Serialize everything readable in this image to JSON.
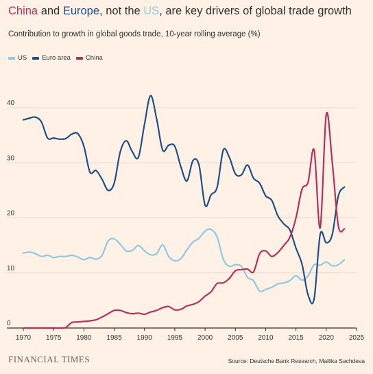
{
  "header": {
    "title_parts": [
      {
        "text": "China",
        "color": "#b5315c"
      },
      {
        "text": " and ",
        "color": "#33302e"
      },
      {
        "text": "Europe",
        "color": "#1f4f8b"
      },
      {
        "text": ", not the ",
        "color": "#33302e"
      },
      {
        "text": "US",
        "color": "#8fc8e0"
      },
      {
        "text": ", are key drivers of global trade growth",
        "color": "#33302e"
      }
    ],
    "subtitle": "Contribution to growth in global goods trade, 10-year rolling average (%)"
  },
  "footer": {
    "brand": "FINANCIAL TIMES",
    "source": "Source: Deutsche Bank Research, Mallika Sachdeva"
  },
  "chart_data": {
    "type": "line",
    "xlim": [
      1970,
      2025
    ],
    "ylim": [
      0,
      40
    ],
    "x_ticks": [
      1970,
      1975,
      1980,
      1985,
      1990,
      1995,
      2000,
      2005,
      2010,
      2015,
      2020,
      2025
    ],
    "y_ticks": [
      0,
      10,
      20,
      30,
      40
    ],
    "grid": "horizontal",
    "legend_position": "top-left",
    "series": [
      {
        "name": "US",
        "color": "#8fc8e0",
        "points": [
          [
            1970,
            13.6
          ],
          [
            1971,
            13.8
          ],
          [
            1972,
            13.5
          ],
          [
            1973,
            13.0
          ],
          [
            1974,
            13.2
          ],
          [
            1975,
            12.8
          ],
          [
            1976,
            13.0
          ],
          [
            1977,
            13.0
          ],
          [
            1978,
            13.2
          ],
          [
            1979,
            12.9
          ],
          [
            1980,
            12.4
          ],
          [
            1981,
            12.8
          ],
          [
            1982,
            12.5
          ],
          [
            1983,
            13.2
          ],
          [
            1984,
            15.8
          ],
          [
            1985,
            16.2
          ],
          [
            1986,
            15.2
          ],
          [
            1987,
            14.0
          ],
          [
            1988,
            14.1
          ],
          [
            1989,
            15.0
          ],
          [
            1990,
            14.0
          ],
          [
            1991,
            13.3
          ],
          [
            1992,
            13.5
          ],
          [
            1993,
            15.1
          ],
          [
            1994,
            13.0
          ],
          [
            1995,
            12.2
          ],
          [
            1996,
            12.6
          ],
          [
            1997,
            14.2
          ],
          [
            1998,
            15.6
          ],
          [
            1999,
            16.3
          ],
          [
            2000,
            17.6
          ],
          [
            2001,
            17.9
          ],
          [
            2002,
            16.5
          ],
          [
            2003,
            12.5
          ],
          [
            2004,
            11.2
          ],
          [
            2005,
            11.5
          ],
          [
            2006,
            11.2
          ],
          [
            2007,
            9.2
          ],
          [
            2008,
            8.6
          ],
          [
            2009,
            6.7
          ],
          [
            2010,
            7.0
          ],
          [
            2011,
            7.4
          ],
          [
            2012,
            8.0
          ],
          [
            2013,
            8.2
          ],
          [
            2014,
            8.6
          ],
          [
            2015,
            9.5
          ],
          [
            2016,
            8.7
          ],
          [
            2017,
            9.5
          ],
          [
            2018,
            11.5
          ],
          [
            2019,
            11.4
          ],
          [
            2020,
            12.0
          ],
          [
            2021,
            11.3
          ],
          [
            2022,
            11.5
          ],
          [
            2023,
            12.4
          ]
        ]
      },
      {
        "name": "Euro area",
        "color": "#1f4f8b",
        "points": [
          [
            1970,
            37.8
          ],
          [
            1971,
            38.1
          ],
          [
            1972,
            38.3
          ],
          [
            1973,
            37.4
          ],
          [
            1974,
            34.5
          ],
          [
            1975,
            34.5
          ],
          [
            1976,
            34.3
          ],
          [
            1977,
            34.4
          ],
          [
            1978,
            35.2
          ],
          [
            1979,
            35.3
          ],
          [
            1980,
            33.0
          ],
          [
            1981,
            28.3
          ],
          [
            1982,
            28.6
          ],
          [
            1983,
            27.0
          ],
          [
            1984,
            25.0
          ],
          [
            1985,
            26.3
          ],
          [
            1986,
            32.0
          ],
          [
            1987,
            34.0
          ],
          [
            1988,
            32.0
          ],
          [
            1989,
            31.0
          ],
          [
            1990,
            37.0
          ],
          [
            1991,
            42.2
          ],
          [
            1992,
            38.0
          ],
          [
            1993,
            32.3
          ],
          [
            1994,
            33.2
          ],
          [
            1995,
            33.0
          ],
          [
            1996,
            29.3
          ],
          [
            1997,
            26.7
          ],
          [
            1998,
            30.4
          ],
          [
            1999,
            29.6
          ],
          [
            2000,
            22.3
          ],
          [
            2001,
            24.2
          ],
          [
            2002,
            25.6
          ],
          [
            2003,
            32.3
          ],
          [
            2004,
            31.0
          ],
          [
            2005,
            28.0
          ],
          [
            2006,
            27.8
          ],
          [
            2007,
            29.6
          ],
          [
            2008,
            27.2
          ],
          [
            2009,
            26.3
          ],
          [
            2010,
            24.0
          ],
          [
            2011,
            23.2
          ],
          [
            2012,
            20.4
          ],
          [
            2013,
            18.9
          ],
          [
            2014,
            17.8
          ],
          [
            2015,
            14.5
          ],
          [
            2016,
            11.6
          ],
          [
            2017,
            6.0
          ],
          [
            2018,
            5.3
          ],
          [
            2019,
            17.0
          ],
          [
            2020,
            15.5
          ],
          [
            2021,
            17.0
          ],
          [
            2022,
            24.0
          ],
          [
            2023,
            25.6
          ]
        ]
      },
      {
        "name": "China",
        "color": "#b5315c",
        "points": [
          [
            1970,
            0.0
          ],
          [
            1971,
            0.0
          ],
          [
            1972,
            0.0
          ],
          [
            1973,
            0.0
          ],
          [
            1974,
            0.0
          ],
          [
            1975,
            0.0
          ],
          [
            1976,
            0.0
          ],
          [
            1977,
            0.1
          ],
          [
            1978,
            1.0
          ],
          [
            1979,
            1.1
          ],
          [
            1980,
            1.2
          ],
          [
            1981,
            1.3
          ],
          [
            1982,
            1.5
          ],
          [
            1983,
            2.0
          ],
          [
            1984,
            2.6
          ],
          [
            1985,
            3.2
          ],
          [
            1986,
            3.2
          ],
          [
            1987,
            2.8
          ],
          [
            1988,
            2.6
          ],
          [
            1989,
            2.7
          ],
          [
            1990,
            2.5
          ],
          [
            1991,
            2.9
          ],
          [
            1992,
            3.2
          ],
          [
            1993,
            3.7
          ],
          [
            1994,
            3.9
          ],
          [
            1995,
            3.3
          ],
          [
            1996,
            3.4
          ],
          [
            1997,
            4.0
          ],
          [
            1998,
            4.3
          ],
          [
            1999,
            4.8
          ],
          [
            2000,
            5.8
          ],
          [
            2001,
            6.6
          ],
          [
            2002,
            8.1
          ],
          [
            2003,
            8.2
          ],
          [
            2004,
            9.0
          ],
          [
            2005,
            10.4
          ],
          [
            2006,
            10.6
          ],
          [
            2007,
            10.7
          ],
          [
            2008,
            10.2
          ],
          [
            2009,
            13.5
          ],
          [
            2010,
            14.0
          ],
          [
            2011,
            13.0
          ],
          [
            2012,
            13.7
          ],
          [
            2013,
            15.0
          ],
          [
            2014,
            16.5
          ],
          [
            2015,
            20.0
          ],
          [
            2016,
            25.2
          ],
          [
            2017,
            26.5
          ],
          [
            2018,
            32.3
          ],
          [
            2019,
            18.2
          ],
          [
            2020,
            38.8
          ],
          [
            2021,
            30.0
          ],
          [
            2022,
            18.5
          ],
          [
            2023,
            18.0
          ]
        ]
      }
    ]
  }
}
